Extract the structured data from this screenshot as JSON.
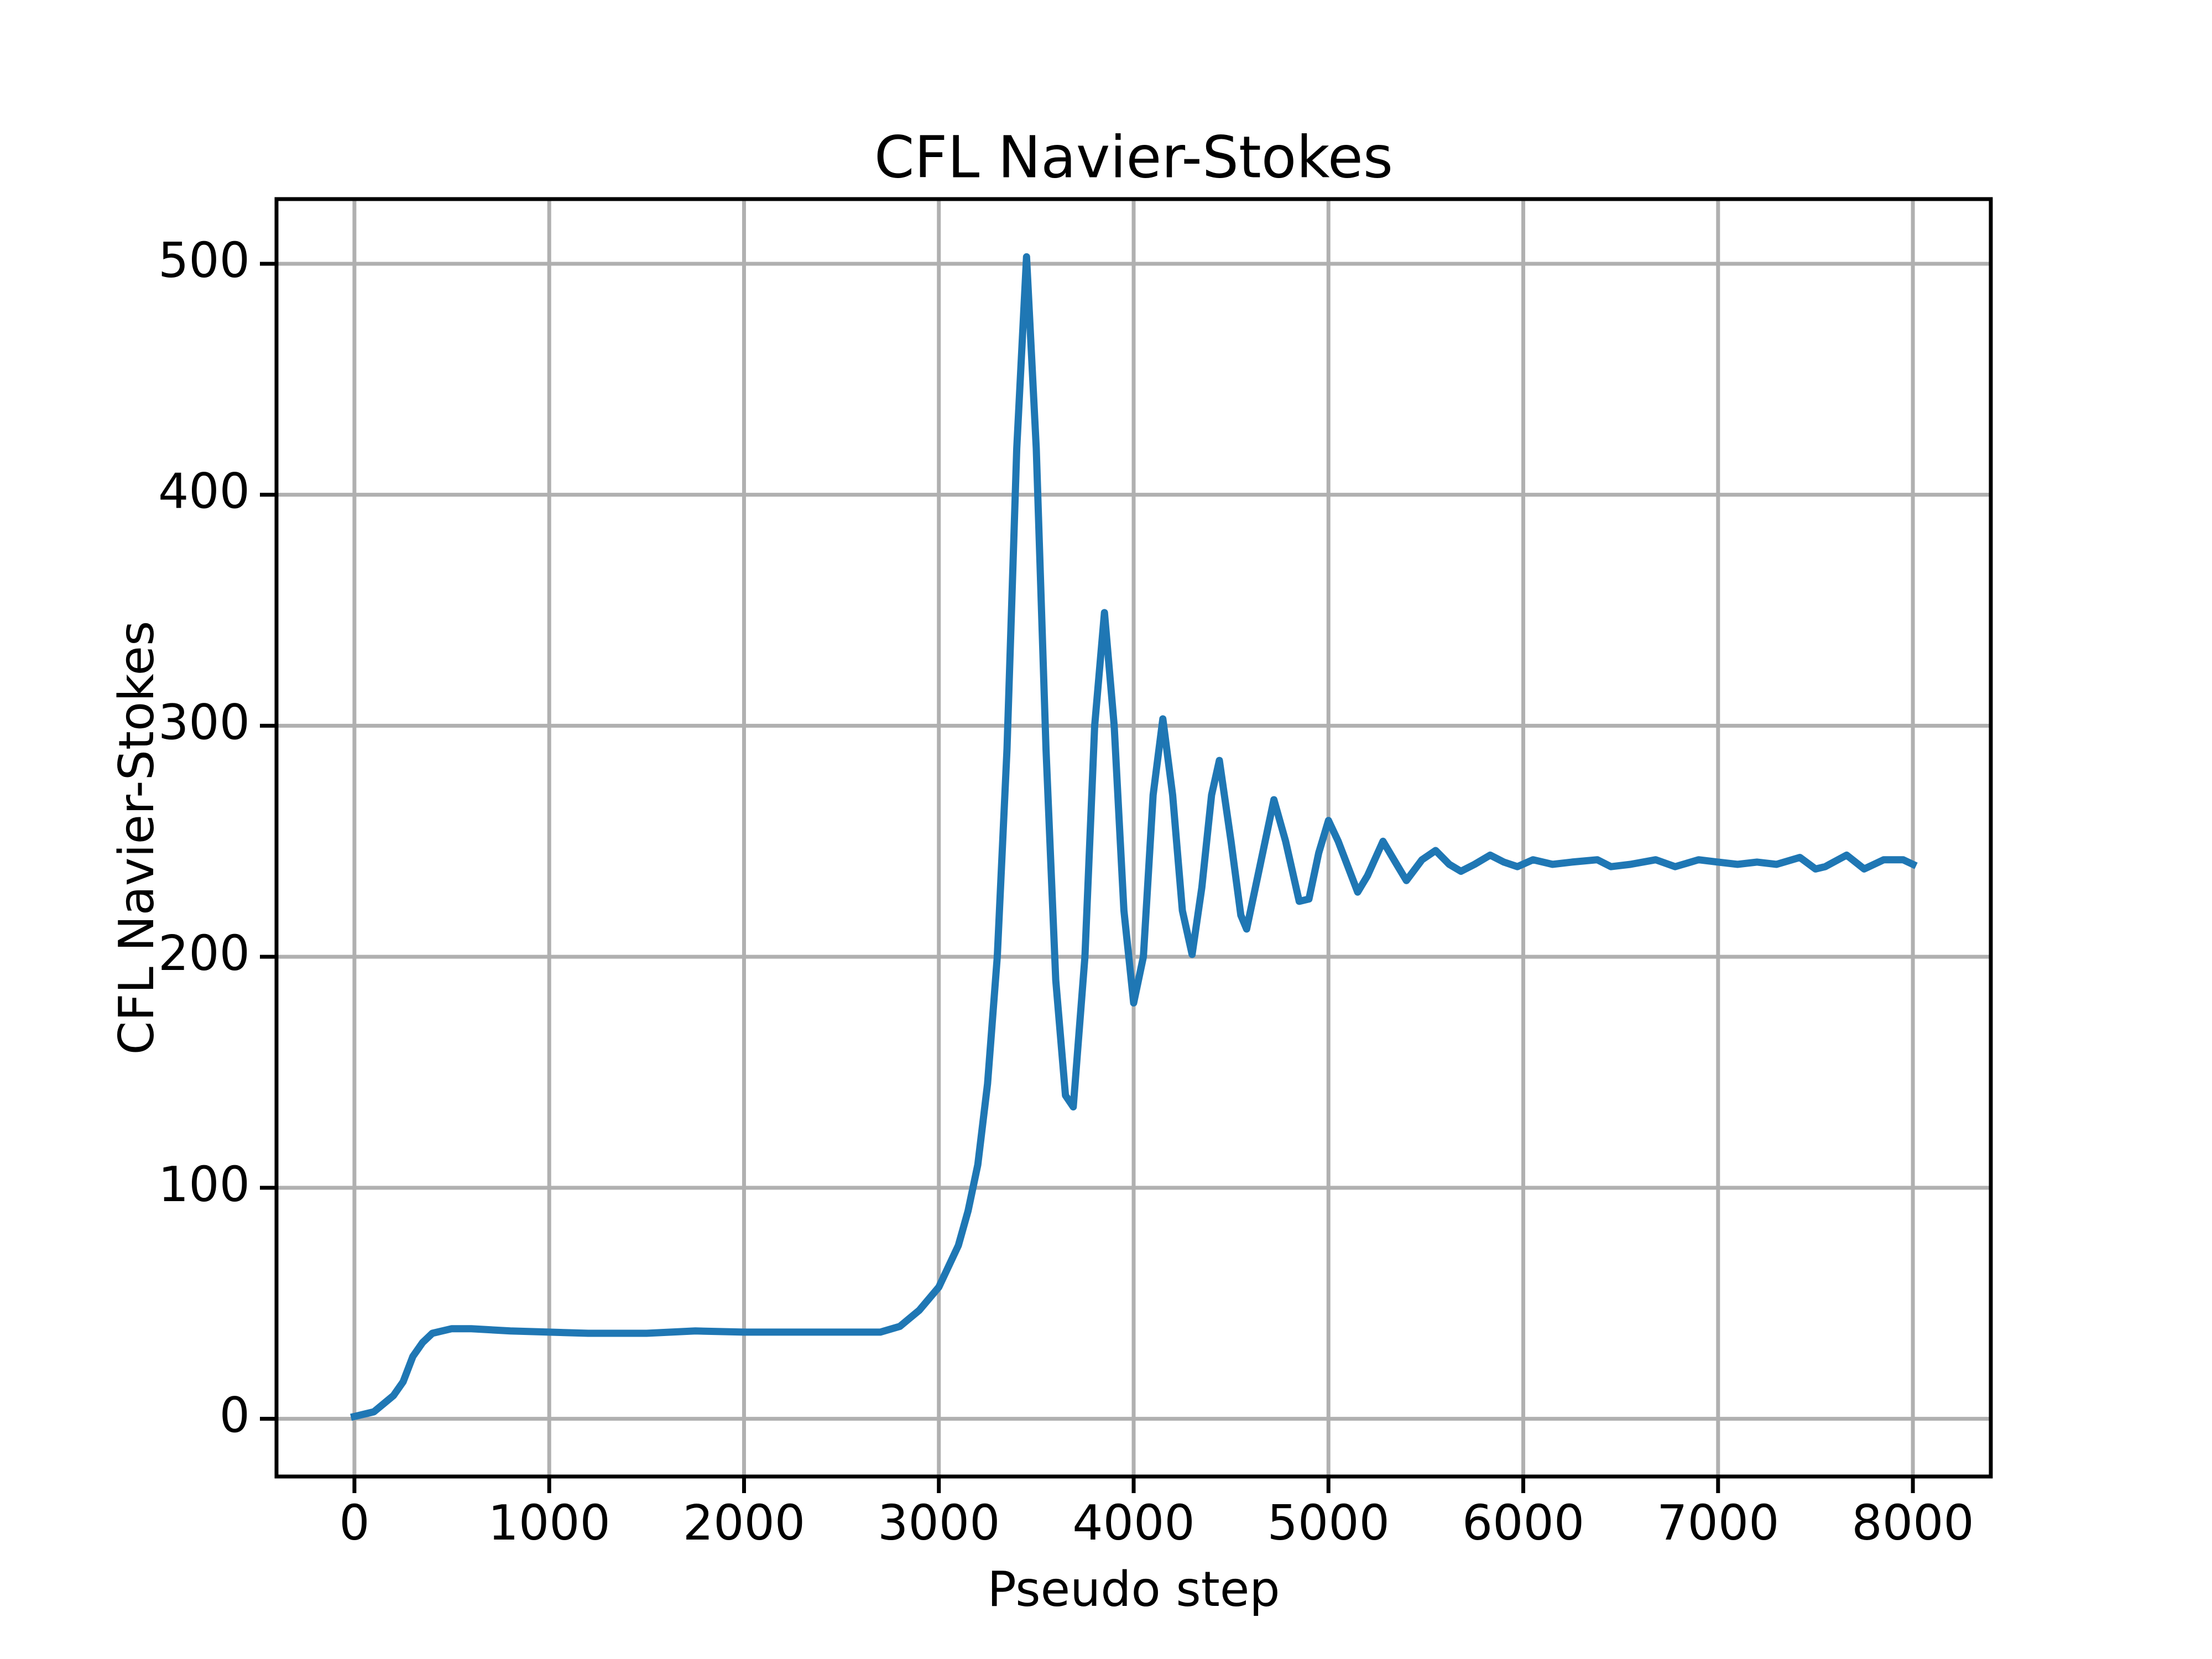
{
  "chart_data": {
    "type": "line",
    "title": "CFL Navier-Stokes",
    "xlabel": "Pseudo step",
    "ylabel": "CFL Navier-Stokes",
    "color": "#1f77b4",
    "grid": true,
    "xlim": [
      -400,
      8400
    ],
    "ylim": [
      -25,
      528
    ],
    "xticks": [
      0,
      1000,
      2000,
      3000,
      4000,
      5000,
      6000,
      7000,
      8000
    ],
    "yticks": [
      0,
      100,
      200,
      300,
      400,
      500
    ],
    "x": [
      0,
      100,
      200,
      250,
      300,
      350,
      400,
      450,
      500,
      600,
      800,
      1000,
      1200,
      1500,
      1750,
      2000,
      2500,
      2700,
      2800,
      2900,
      3000,
      3100,
      3150,
      3200,
      3250,
      3300,
      3350,
      3400,
      3450,
      3500,
      3550,
      3600,
      3650,
      3690,
      3750,
      3800,
      3850,
      3900,
      3950,
      4000,
      4050,
      4100,
      4150,
      4200,
      4250,
      4300,
      4350,
      4400,
      4440,
      4500,
      4550,
      4580,
      4650,
      4720,
      4780,
      4850,
      4900,
      4950,
      5000,
      5050,
      5150,
      5200,
      5280,
      5350,
      5400,
      5480,
      5550,
      5620,
      5680,
      5750,
      5830,
      5900,
      5970,
      6050,
      6150,
      6250,
      6380,
      6450,
      6550,
      6680,
      6780,
      6900,
      7000,
      7100,
      7200,
      7300,
      7420,
      7500,
      7550,
      7660,
      7750,
      7850,
      7950,
      8000
    ],
    "values": [
      1,
      3,
      10,
      16,
      27,
      33,
      37,
      38,
      39,
      39,
      38,
      37.5,
      37,
      37,
      38,
      37.5,
      37.5,
      37.5,
      40,
      47,
      57,
      75,
      90,
      110,
      145,
      200,
      290,
      420,
      503,
      420,
      290,
      190,
      140,
      135,
      200,
      300,
      349,
      300,
      220,
      180,
      200,
      270,
      303,
      270,
      220,
      201,
      230,
      270,
      285,
      250,
      218,
      212,
      240,
      268,
      250,
      224,
      225,
      245,
      259,
      250,
      228,
      235,
      250,
      240,
      233,
      242,
      246,
      240,
      237,
      240,
      244,
      241,
      239,
      242,
      240,
      241,
      242,
      239,
      240,
      242,
      239,
      242,
      241,
      240,
      241,
      240,
      243,
      238,
      239,
      244,
      238,
      242,
      242,
      240
    ]
  }
}
